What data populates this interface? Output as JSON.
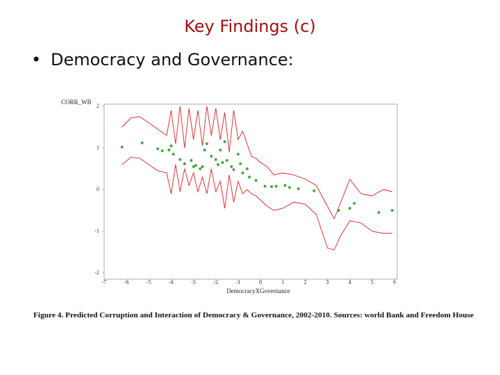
{
  "slide": {
    "title": "Key Findings (c)",
    "bullet": "Democracy and Governance:"
  },
  "chart_data": {
    "type": "scatter",
    "ylabel": "CORR_WB",
    "xlabel": "DemocracyXGovernance",
    "caption": "Figure 4. Predicted Corruption and Interaction of Democracy & Governance, 2002-2010. Sources: world Bank and Freedom House",
    "xlim": [
      -7,
      6
    ],
    "ylim": [
      -2,
      2
    ],
    "xticks": [
      -7,
      -6,
      -5,
      -4,
      -3,
      -2,
      -1,
      0,
      1,
      2,
      3,
      4,
      5,
      6
    ],
    "yticks": [
      -2,
      -1,
      0,
      1,
      2
    ],
    "series": [
      {
        "kind": "points",
        "color": "#2e9e2e",
        "x": [
          -6.2,
          -5.3,
          -4.6,
          -4.4,
          -4.1,
          -4.0,
          -3.9,
          -3.6,
          -3.4,
          -3.1,
          -3.0,
          -2.9,
          -2.7,
          -2.6,
          -2.5,
          -2.4,
          -2.2,
          -2.0,
          -1.9,
          -1.8,
          -1.7,
          -1.6,
          -1.5,
          -1.3,
          -1.2,
          -1.0,
          -0.9,
          -0.8,
          -0.6,
          -0.5,
          -0.2,
          0.2,
          0.5,
          0.7,
          1.1,
          1.3,
          1.7,
          2.4,
          3.5,
          4.0,
          4.2,
          5.3,
          5.9
        ],
        "values": [
          1.02,
          1.12,
          0.98,
          0.93,
          0.95,
          1.05,
          0.85,
          0.72,
          0.62,
          0.7,
          0.55,
          0.58,
          0.5,
          0.55,
          0.95,
          1.1,
          0.8,
          0.72,
          0.6,
          0.95,
          0.65,
          1.15,
          0.7,
          0.55,
          0.48,
          0.85,
          0.62,
          0.4,
          0.5,
          0.3,
          0.22,
          0.08,
          0.07,
          0.08,
          0.1,
          0.05,
          0.02,
          -0.03,
          -0.5,
          -0.45,
          -0.33,
          -0.55,
          -0.5
        ]
      },
      {
        "kind": "line",
        "color": "#d42020",
        "x": [
          -6.2,
          -5.8,
          -5.4,
          -5.0,
          -4.6,
          -4.2,
          -4.0,
          -3.8,
          -3.6,
          -3.4,
          -3.2,
          -3.0,
          -2.8,
          -2.6,
          -2.4,
          -2.2,
          -2.0,
          -1.8,
          -1.6,
          -1.4,
          -1.2,
          -1.0,
          -0.8,
          -0.6,
          -0.4,
          -0.2,
          0,
          0.3,
          0.6,
          1.0,
          1.5,
          2.0,
          2.5,
          3.0,
          3.3,
          3.6,
          4.0,
          4.5,
          5.0,
          5.5,
          5.9
        ],
        "values": [
          1.5,
          1.72,
          1.75,
          1.6,
          1.45,
          1.3,
          1.9,
          1.1,
          2.0,
          1.0,
          1.95,
          1.2,
          1.9,
          1.05,
          2.0,
          1.3,
          1.95,
          1.2,
          1.85,
          0.9,
          1.9,
          1.2,
          1.4,
          1.1,
          0.8,
          0.75,
          0.65,
          0.55,
          0.35,
          0.4,
          0.35,
          0.25,
          0.1,
          -0.4,
          -0.7,
          -0.3,
          0.25,
          -0.1,
          -0.15,
          0,
          -0.05
        ]
      },
      {
        "kind": "line",
        "color": "#d42020",
        "x": [
          -6.2,
          -5.8,
          -5.4,
          -5.0,
          -4.6,
          -4.2,
          -4.0,
          -3.8,
          -3.6,
          -3.4,
          -3.2,
          -3.0,
          -2.8,
          -2.6,
          -2.4,
          -2.2,
          -2.0,
          -1.8,
          -1.6,
          -1.4,
          -1.2,
          -1.0,
          -0.8,
          -0.6,
          -0.4,
          -0.2,
          0,
          0.3,
          0.6,
          1.0,
          1.5,
          2.0,
          2.5,
          3.0,
          3.3,
          3.6,
          4.0,
          4.5,
          5.0,
          5.5,
          5.9
        ],
        "values": [
          0.6,
          0.78,
          0.75,
          0.6,
          0.45,
          0.4,
          -0.1,
          0.6,
          -0.05,
          0.5,
          0.1,
          0.4,
          -0.05,
          0.3,
          -0.1,
          0.5,
          -0.05,
          0.2,
          -0.45,
          0.35,
          -0.3,
          0.2,
          -0.1,
          0.0,
          -0.1,
          -0.15,
          -0.25,
          -0.4,
          -0.5,
          -0.45,
          -0.3,
          -0.35,
          -0.6,
          -1.4,
          -1.45,
          -1.1,
          -0.75,
          -0.8,
          -1.0,
          -1.05,
          -1.05
        ]
      }
    ]
  }
}
